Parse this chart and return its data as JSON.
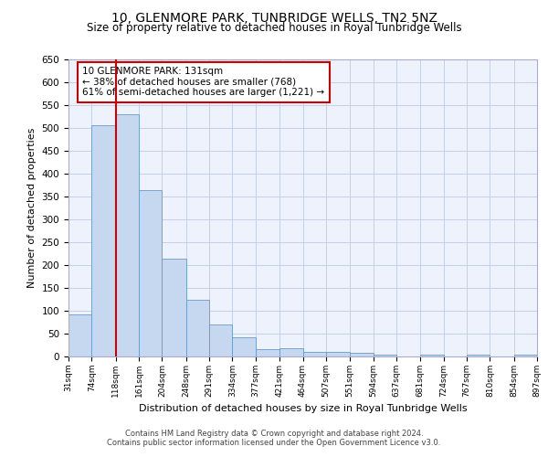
{
  "title": "10, GLENMORE PARK, TUNBRIDGE WELLS, TN2 5NZ",
  "subtitle": "Size of property relative to detached houses in Royal Tunbridge Wells",
  "xlabel": "Distribution of detached houses by size in Royal Tunbridge Wells",
  "ylabel": "Number of detached properties",
  "footer1": "Contains HM Land Registry data © Crown copyright and database right 2024.",
  "footer2": "Contains public sector information licensed under the Open Government Licence v3.0.",
  "annotation_line1": "10 GLENMORE PARK: 131sqm",
  "annotation_line2": "← 38% of detached houses are smaller (768)",
  "annotation_line3": "61% of semi-detached houses are larger (1,221) →",
  "bar_edges": [
    31,
    74,
    118,
    161,
    204,
    248,
    291,
    334,
    377,
    421,
    464,
    507,
    551,
    594,
    637,
    681,
    724,
    767,
    810,
    854,
    897
  ],
  "bar_values": [
    93,
    507,
    530,
    365,
    215,
    125,
    70,
    43,
    16,
    19,
    11,
    11,
    8,
    5,
    0,
    5,
    0,
    4,
    0,
    4
  ],
  "bar_color": "#c5d8f0",
  "bar_edge_color": "#6899c8",
  "red_line_x": 118,
  "ylim": [
    0,
    650
  ],
  "yticks": [
    0,
    50,
    100,
    150,
    200,
    250,
    300,
    350,
    400,
    450,
    500,
    550,
    600,
    650
  ],
  "background_color": "#edf2fc",
  "grid_color": "#c5cfe8",
  "title_fontsize": 10,
  "subtitle_fontsize": 8.5,
  "annotation_box_color": "#ffffff",
  "annotation_box_edge": "#cc0000",
  "red_line_color": "#cc0000"
}
